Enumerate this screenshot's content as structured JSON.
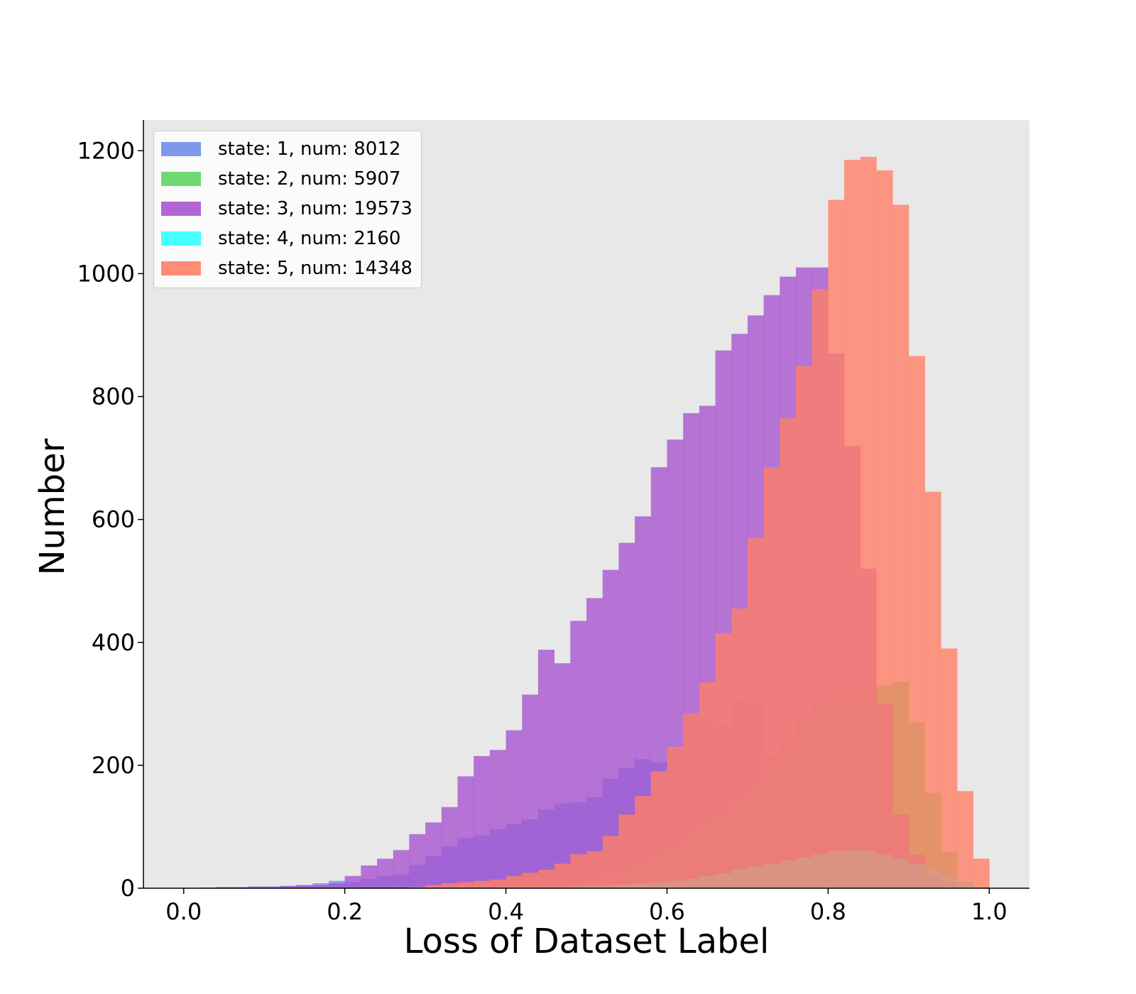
{
  "chart_data": {
    "type": "histogram",
    "xlabel": "Loss of Dataset Label",
    "ylabel": "Number",
    "xlim": [
      -0.05,
      1.05
    ],
    "ylim": [
      0,
      1250
    ],
    "xticks": [
      "0.0",
      "0.2",
      "0.4",
      "0.6",
      "0.8",
      "1.0"
    ],
    "yticks": [
      "0",
      "200",
      "400",
      "600",
      "800",
      "1000",
      "1200"
    ],
    "background_color": "#e8e8e8",
    "grid": false,
    "legend_position": "upper-left",
    "bin_width": 0.02,
    "series": [
      {
        "name": "state: 1, num: 8012",
        "color": "#6f8fe8",
        "bin_start": 0.0,
        "values": [
          0,
          1,
          2,
          2,
          3,
          3,
          4,
          5,
          8,
          12,
          10,
          15,
          20,
          22,
          38,
          52,
          68,
          82,
          86,
          96,
          105,
          112,
          128,
          138,
          140,
          148,
          178,
          196,
          210,
          205,
          225,
          285,
          275,
          265,
          308,
          300,
          215,
          160,
          100,
          65,
          50,
          30,
          15,
          8,
          4,
          2,
          1,
          0,
          0,
          0
        ]
      },
      {
        "name": "state: 2, num: 5907",
        "color": "#5fd65f",
        "bin_start": 0.0,
        "values": [
          0,
          0,
          0,
          0,
          0,
          0,
          0,
          0,
          0,
          0,
          0,
          0,
          0,
          0,
          0,
          0,
          2,
          3,
          4,
          5,
          8,
          10,
          12,
          14,
          16,
          20,
          24,
          30,
          40,
          58,
          72,
          92,
          108,
          125,
          150,
          178,
          210,
          245,
          275,
          300,
          310,
          320,
          325,
          330,
          336,
          270,
          155,
          60,
          10,
          0
        ]
      },
      {
        "name": "state: 3, num: 19573",
        "color": "#a855d0",
        "bin_start": 0.0,
        "values": [
          0,
          0,
          1,
          1,
          2,
          2,
          3,
          5,
          5,
          8,
          20,
          37,
          48,
          62,
          88,
          107,
          132,
          182,
          215,
          225,
          257,
          315,
          388,
          366,
          435,
          472,
          518,
          562,
          605,
          685,
          730,
          773,
          785,
          875,
          902,
          932,
          965,
          995,
          1010,
          1010,
          870,
          720,
          520,
          300,
          120,
          55,
          20,
          8,
          3,
          1
        ]
      },
      {
        "name": "state: 4, num: 2160",
        "color": "#33ffff",
        "bin_start": 0.0,
        "values": [
          0,
          0,
          0,
          0,
          0,
          0,
          0,
          0,
          0,
          0,
          0,
          0,
          0,
          0,
          0,
          0,
          0,
          0,
          0,
          0,
          0,
          1,
          1,
          2,
          3,
          4,
          5,
          6,
          8,
          10,
          12,
          15,
          20,
          24,
          30,
          36,
          40,
          45,
          50,
          55,
          60,
          62,
          60,
          55,
          48,
          40,
          30,
          18,
          8,
          2
        ]
      },
      {
        "name": "state: 5, num: 14348",
        "color": "#ff7f66",
        "bin_start": 0.0,
        "values": [
          0,
          0,
          0,
          0,
          0,
          0,
          0,
          0,
          0,
          0,
          0,
          0,
          0,
          0,
          2,
          5,
          8,
          10,
          12,
          14,
          20,
          25,
          30,
          40,
          55,
          60,
          85,
          120,
          150,
          190,
          230,
          285,
          335,
          415,
          455,
          570,
          685,
          765,
          850,
          975,
          1120,
          1185,
          1190,
          1168,
          1112,
          866,
          645,
          390,
          158,
          48
        ]
      }
    ]
  },
  "legend": {
    "items": [
      {
        "label": "state: 1, num: 8012",
        "color": "#6f8fe8"
      },
      {
        "label": "state: 2, num: 5907",
        "color": "#5fd65f"
      },
      {
        "label": "state: 3, num: 19573",
        "color": "#a855d0"
      },
      {
        "label": "state: 4, num: 2160",
        "color": "#33ffff"
      },
      {
        "label": "state: 5, num: 14348",
        "color": "#ff7f66"
      }
    ]
  }
}
